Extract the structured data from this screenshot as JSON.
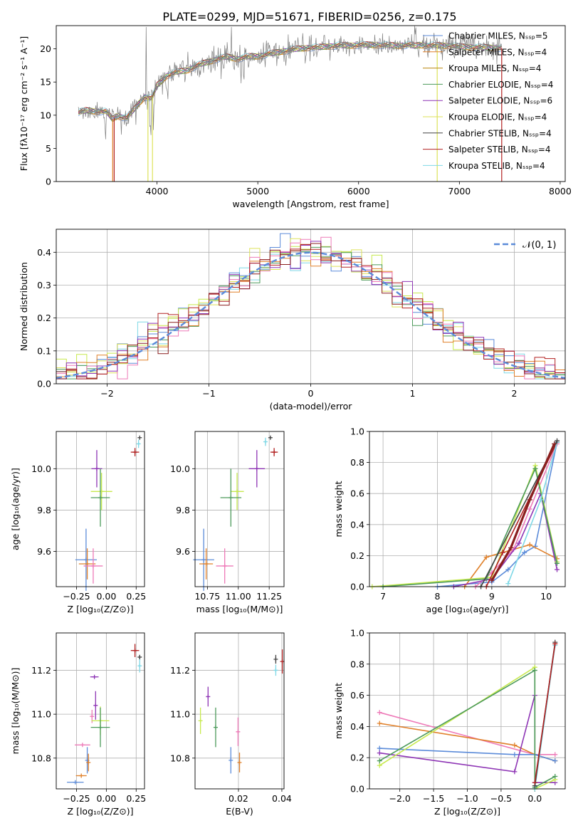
{
  "page": {
    "title": "PLATE=0299, MJD=51671, FIBERID=0256, z=0.175"
  },
  "colors": {
    "cm": "#5b8bd9",
    "sm": "#e0802a",
    "km": "#b8860b",
    "ce": "#4c9a5a",
    "se": "#8e35b5",
    "ke": "#dde25a",
    "cs": "#444444",
    "ss": "#b22222",
    "ks": "#7fd8e6",
    "pink": "#ee7ab8",
    "lime": "#c7e94e",
    "model": "#8a1f1f",
    "gauss": "#5b8bd9",
    "grid": "#b0b0b0",
    "spectrum": "#808080"
  },
  "chart_data": [
    {
      "id": "spectrum",
      "type": "line",
      "xlabel": "wavelength [Angstrom, rest frame]",
      "ylabel": "Flux [fλ10⁻¹⁷ erg cm⁻² s⁻¹ A⁻¹]",
      "xlim": [
        3000,
        8050
      ],
      "ylim": [
        0,
        23.5
      ],
      "xticks": [
        4000,
        5000,
        6000,
        7000,
        8000
      ],
      "yticks": [
        0,
        5,
        10,
        15,
        20
      ],
      "legend": "top-right",
      "series": [
        {
          "name": "Chabrier MILES, Nₛₛₚ=5",
          "color": "cm"
        },
        {
          "name": "Salpeter MILES, Nₛₛₚ=4",
          "color": "sm"
        },
        {
          "name": "Kroupa MILES, Nₛₛₚ=4",
          "color": "km"
        },
        {
          "name": "Chabrier ELODIE, Nₛₛₚ=4",
          "color": "ce"
        },
        {
          "name": "Salpeter ELODIE, Nₛₛₚ=6",
          "color": "se"
        },
        {
          "name": "Kroupa ELODIE, Nₛₛₚ=4",
          "color": "ke"
        },
        {
          "name": "Chabrier STELIB, Nₛₛₚ=4",
          "color": "cs"
        },
        {
          "name": "Salpeter STELIB, Nₛₛₚ=4",
          "color": "ss"
        },
        {
          "name": "Kroupa STELIB, Nₛₛₚ=4",
          "color": "ks"
        }
      ],
      "envelope": [
        [
          3220,
          10.4
        ],
        [
          3300,
          10.7
        ],
        [
          3400,
          10.6
        ],
        [
          3500,
          10.5
        ],
        [
          3560,
          9.4
        ],
        [
          3600,
          9.9
        ],
        [
          3700,
          9.6
        ],
        [
          3780,
          11.0
        ],
        [
          3820,
          11.8
        ],
        [
          3880,
          12.8
        ],
        [
          3950,
          12.5
        ],
        [
          4000,
          14.5
        ],
        [
          4100,
          16.0
        ],
        [
          4200,
          16.5
        ],
        [
          4300,
          16.8
        ],
        [
          4400,
          17.5
        ],
        [
          4500,
          18.0
        ],
        [
          4600,
          18.5
        ],
        [
          4700,
          18.8
        ],
        [
          4800,
          18.5
        ],
        [
          4900,
          18.8
        ],
        [
          5000,
          18.9
        ],
        [
          5100,
          19.2
        ],
        [
          5200,
          19.5
        ],
        [
          5300,
          19.8
        ],
        [
          5400,
          20.0
        ],
        [
          5500,
          20.2
        ],
        [
          5600,
          20.2
        ],
        [
          5700,
          20.4
        ],
        [
          5800,
          20.5
        ],
        [
          5900,
          20.5
        ],
        [
          6000,
          20.6
        ],
        [
          6100,
          20.6
        ],
        [
          6200,
          20.6
        ],
        [
          6300,
          20.5
        ],
        [
          6400,
          20.5
        ],
        [
          6500,
          20.6
        ],
        [
          6560,
          20.4
        ],
        [
          6600,
          20.6
        ],
        [
          6700,
          20.5
        ],
        [
          6800,
          20.5
        ],
        [
          6900,
          20.5
        ],
        [
          7000,
          20.3
        ],
        [
          7100,
          20.3
        ],
        [
          7200,
          20.2
        ],
        [
          7300,
          20.2
        ],
        [
          7400,
          20.1
        ]
      ]
    },
    {
      "id": "residuals",
      "type": "line",
      "xlabel": "(data-model)/error",
      "ylabel": "Normed distribution",
      "xlim": [
        -2.5,
        2.5
      ],
      "ylim": [
        0,
        0.47
      ],
      "xticks": [
        -2,
        -1,
        0,
        1,
        2
      ],
      "yticks": [
        0.0,
        0.1,
        0.2,
        0.3,
        0.4
      ],
      "legend": "top-right",
      "series": [
        {
          "name": "𝒩(0, 1)",
          "color": "gauss",
          "style": "dashed"
        }
      ]
    },
    {
      "id": "age-vs-Z",
      "type": "scatter",
      "xlabel": "Z [log₁₀(Z/Z⊙)]",
      "ylabel": "age  [log₁₀(age/yr)]",
      "xlim": [
        -0.42,
        0.32
      ],
      "ylim": [
        9.43,
        10.18
      ],
      "xticks": [
        -0.25,
        0.0,
        0.25
      ],
      "yticks": [
        9.6,
        9.8,
        10.0
      ],
      "points": [
        {
          "c": "cm",
          "x": -0.17,
          "y": 9.56,
          "dx": 0.18,
          "dy": 0.3
        },
        {
          "c": "sm",
          "x": -0.16,
          "y": 9.54,
          "dx": 0.14,
          "dy": 0.15
        },
        {
          "c": "pink",
          "x": -0.11,
          "y": 9.53,
          "dx": 0.16,
          "dy": 0.17
        },
        {
          "c": "se",
          "x": -0.08,
          "y": 10.0,
          "dx": 0.09,
          "dy": 0.18
        },
        {
          "c": "lime",
          "x": -0.04,
          "y": 9.89,
          "dx": 0.18,
          "dy": 0.18
        },
        {
          "c": "ce",
          "x": -0.05,
          "y": 9.86,
          "dx": 0.16,
          "dy": 0.28
        },
        {
          "c": "ss",
          "x": 0.24,
          "y": 10.08,
          "dx": 0.07,
          "dy": 0.04
        },
        {
          "c": "ks",
          "x": 0.27,
          "y": 10.12,
          "dx": 0.02,
          "dy": 0.04
        },
        {
          "c": "cs",
          "x": 0.28,
          "y": 10.15,
          "dx": 0.01,
          "dy": 0.01
        }
      ]
    },
    {
      "id": "age-vs-mass",
      "type": "scatter",
      "xlabel": "mass [log₁₀(M/M⊙)]",
      "ylabel": "",
      "xlim": [
        10.65,
        11.37
      ],
      "ylim": [
        9.43,
        10.18
      ],
      "xticks": [
        10.75,
        11.0,
        11.25
      ],
      "yticks": [
        9.6,
        9.8,
        10.0
      ],
      "points": [
        {
          "c": "cm",
          "x": 10.72,
          "y": 9.56,
          "dx": 0.17,
          "dy": 0.3
        },
        {
          "c": "sm",
          "x": 10.74,
          "y": 9.54,
          "dx": 0.11,
          "dy": 0.15
        },
        {
          "c": "pink",
          "x": 10.89,
          "y": 9.53,
          "dx": 0.14,
          "dy": 0.17
        },
        {
          "c": "se",
          "x": 11.15,
          "y": 10.0,
          "dx": 0.13,
          "dy": 0.18
        },
        {
          "c": "lime",
          "x": 10.99,
          "y": 9.89,
          "dx": 0.11,
          "dy": 0.18
        },
        {
          "c": "ce",
          "x": 10.94,
          "y": 9.86,
          "dx": 0.17,
          "dy": 0.28
        },
        {
          "c": "ss",
          "x": 11.29,
          "y": 10.08,
          "dx": 0.06,
          "dy": 0.04
        },
        {
          "c": "ks",
          "x": 11.22,
          "y": 10.13,
          "dx": 0.02,
          "dy": 0.04
        },
        {
          "c": "cs",
          "x": 11.26,
          "y": 10.15,
          "dx": 0.01,
          "dy": 0.01
        }
      ]
    },
    {
      "id": "massweight-vs-age",
      "type": "line",
      "xlabel": "age  [log₁₀(age/yr)]",
      "ylabel": "mass weight",
      "xlim": [
        6.75,
        10.35
      ],
      "ylim": [
        0,
        1.0
      ],
      "xticks": [
        7,
        8,
        9,
        10
      ],
      "yticks": [
        0.0,
        0.2,
        0.4,
        0.6,
        0.8,
        1.0
      ],
      "series": [
        {
          "c": "cm",
          "pts": [
            [
              8.0,
              0.0
            ],
            [
              9.0,
              0.03
            ],
            [
              9.3,
              0.11
            ],
            [
              9.6,
              0.22
            ],
            [
              9.8,
              0.26
            ],
            [
              10.2,
              0.93
            ]
          ]
        },
        {
          "c": "sm",
          "pts": [
            [
              8.5,
              0.0
            ],
            [
              8.9,
              0.19
            ],
            [
              9.7,
              0.27
            ],
            [
              10.2,
              0.18
            ]
          ]
        },
        {
          "c": "pink",
          "pts": [
            [
              8.7,
              0.0
            ],
            [
              9.0,
              0.09
            ],
            [
              9.4,
              0.24
            ],
            [
              9.7,
              0.5
            ],
            [
              10.2,
              0.92
            ]
          ]
        },
        {
          "c": "se",
          "pts": [
            [
              8.3,
              0.0
            ],
            [
              9.0,
              0.05
            ],
            [
              9.5,
              0.28
            ],
            [
              9.9,
              0.6
            ],
            [
              10.2,
              0.11
            ]
          ]
        },
        {
          "c": "lime",
          "pts": [
            [
              6.8,
              0.0
            ],
            [
              9.0,
              0.06
            ],
            [
              9.8,
              0.78
            ],
            [
              10.2,
              0.16
            ]
          ]
        },
        {
          "c": "ce",
          "pts": [
            [
              7.0,
              0.0
            ],
            [
              8.9,
              0.05
            ],
            [
              9.8,
              0.76
            ],
            [
              10.2,
              0.15
            ]
          ]
        },
        {
          "c": "ss",
          "pts": [
            [
              8.9,
              0.0
            ],
            [
              9.2,
              0.22
            ],
            [
              10.2,
              0.93
            ]
          ]
        },
        {
          "c": "ks",
          "pts": [
            [
              9.3,
              0.02
            ],
            [
              9.9,
              0.56
            ],
            [
              10.2,
              0.93
            ]
          ]
        },
        {
          "c": "cs",
          "pts": [
            [
              8.8,
              0.0
            ],
            [
              10.2,
              0.94
            ]
          ]
        },
        {
          "c": "model",
          "w": 3.2,
          "pts": [
            [
              9.0,
              0.04
            ],
            [
              9.35,
              0.25
            ],
            [
              9.7,
              0.56
            ],
            [
              10.15,
              0.92
            ]
          ]
        }
      ]
    },
    {
      "id": "mass-vs-Z",
      "type": "scatter",
      "xlabel": "Z [log₁₀(Z/Z⊙)]",
      "ylabel": "mass [log₁₀(M/M⊙)]",
      "xlim": [
        -0.42,
        0.32
      ],
      "ylim": [
        10.66,
        11.37
      ],
      "xticks": [
        -0.25,
        0.0,
        0.25
      ],
      "yticks": [
        10.8,
        11.0,
        11.2
      ],
      "points": [
        {
          "c": "cm",
          "x": -0.26,
          "y": 10.69,
          "dx": 0.14,
          "dy": 0.0
        },
        {
          "c": "sm",
          "x": -0.21,
          "y": 10.72,
          "dx": 0.09,
          "dy": 0.0
        },
        {
          "c": "pink",
          "x": -0.2,
          "y": 10.86,
          "dx": 0.13,
          "dy": 0.0
        },
        {
          "c": "cm",
          "x": -0.16,
          "y": 10.79,
          "dx": 0.0,
          "dy": 0.12
        },
        {
          "c": "sm",
          "x": -0.15,
          "y": 10.78,
          "dx": 0.0,
          "dy": 0.08
        },
        {
          "c": "pink",
          "x": -0.12,
          "y": 10.99,
          "dx": 0.0,
          "dy": 0.06
        },
        {
          "c": "se",
          "x": -0.1,
          "y": 11.17,
          "dx": 0.07,
          "dy": 0.0
        },
        {
          "c": "se",
          "x": -0.09,
          "y": 11.04,
          "dx": 0.0,
          "dy": 0.13
        },
        {
          "c": "lime",
          "x": -0.05,
          "y": 10.97,
          "dx": 0.15,
          "dy": 0.13
        },
        {
          "c": "ce",
          "x": -0.05,
          "y": 10.94,
          "dx": 0.16,
          "dy": 0.18
        },
        {
          "c": "ss",
          "x": 0.24,
          "y": 11.29,
          "dx": 0.07,
          "dy": 0.06
        },
        {
          "c": "ks",
          "x": 0.28,
          "y": 11.22,
          "dx": 0.02,
          "dy": 0.06
        },
        {
          "c": "cs",
          "x": 0.28,
          "y": 11.26,
          "dx": 0.01,
          "dy": 0.02
        }
      ]
    },
    {
      "id": "mass-vs-ebv",
      "type": "scatter",
      "xlabel": "E(B-V)",
      "ylabel": "",
      "xlim": [
        0.0,
        0.041
      ],
      "ylim": [
        10.66,
        11.37
      ],
      "xticks": [
        0.02,
        0.04
      ],
      "yticks": [
        10.8,
        11.0,
        11.2
      ],
      "points": [
        {
          "c": "lime",
          "x": 0.0025,
          "y": 10.97,
          "dx": 0.0,
          "dy": 0.12
        },
        {
          "c": "se",
          "x": 0.006,
          "y": 11.08,
          "dx": 0.0,
          "dy": 0.09
        },
        {
          "c": "ce",
          "x": 0.0095,
          "y": 10.94,
          "dx": 0.0,
          "dy": 0.18
        },
        {
          "c": "cm",
          "x": 0.0165,
          "y": 10.79,
          "dx": 0.0,
          "dy": 0.12
        },
        {
          "c": "pink",
          "x": 0.0198,
          "y": 10.92,
          "dx": 0.0,
          "dy": 0.13
        },
        {
          "c": "sm",
          "x": 0.0205,
          "y": 10.78,
          "dx": 0.0,
          "dy": 0.09
        },
        {
          "c": "cs",
          "x": 0.0372,
          "y": 11.25,
          "dx": 0.0,
          "dy": 0.04
        },
        {
          "c": "ks",
          "x": 0.0372,
          "y": 11.2,
          "dx": 0.0,
          "dy": 0.05
        },
        {
          "c": "ss",
          "x": 0.0402,
          "y": 11.24,
          "dx": 0.0,
          "dy": 0.11
        }
      ]
    },
    {
      "id": "massweight-vs-Z",
      "type": "line",
      "xlabel": "Z [log₁₀(Z/Z⊙)]",
      "ylabel": "mass weight",
      "xlim": [
        -2.45,
        0.45
      ],
      "ylim": [
        0,
        1.0
      ],
      "xticks": [
        -2.0,
        -1.5,
        -1.0,
        -0.5,
        0.0
      ],
      "yticks": [
        0.0,
        0.2,
        0.4,
        0.6,
        0.8,
        1.0
      ],
      "series": [
        {
          "c": "pink",
          "pts": [
            [
              -2.3,
              0.49
            ],
            [
              0.0,
              0.22
            ],
            [
              0.3,
              0.22
            ]
          ]
        },
        {
          "c": "sm",
          "pts": [
            [
              -2.3,
              0.42
            ],
            [
              -0.3,
              0.28
            ],
            [
              0.0,
              0.22
            ],
            [
              0.3,
              0.18
            ]
          ]
        },
        {
          "c": "cm",
          "pts": [
            [
              -2.3,
              0.26
            ],
            [
              -0.3,
              0.22
            ],
            [
              0.0,
              0.22
            ],
            [
              0.3,
              0.18
            ]
          ]
        },
        {
          "c": "se",
          "pts": [
            [
              -2.3,
              0.23
            ],
            [
              -0.3,
              0.11
            ],
            [
              0.0,
              0.6
            ],
            [
              0.0,
              0.04
            ],
            [
              0.3,
              0.04
            ]
          ]
        },
        {
          "c": "lime",
          "pts": [
            [
              -2.3,
              0.15
            ],
            [
              0.0,
              0.78
            ],
            [
              0.0,
              0.0
            ],
            [
              0.3,
              0.06
            ]
          ]
        },
        {
          "c": "ce",
          "pts": [
            [
              -2.3,
              0.18
            ],
            [
              0.0,
              0.76
            ],
            [
              0.0,
              0.01
            ],
            [
              0.3,
              0.08
            ]
          ]
        },
        {
          "c": "ks",
          "pts": [
            [
              0.0,
              0.0
            ],
            [
              0.3,
              0.92
            ]
          ]
        },
        {
          "c": "cs",
          "pts": [
            [
              0.0,
              0.02
            ],
            [
              0.3,
              0.94
            ]
          ]
        },
        {
          "c": "ss",
          "pts": [
            [
              0.0,
              0.04
            ],
            [
              0.3,
              0.93
            ]
          ]
        }
      ]
    }
  ]
}
